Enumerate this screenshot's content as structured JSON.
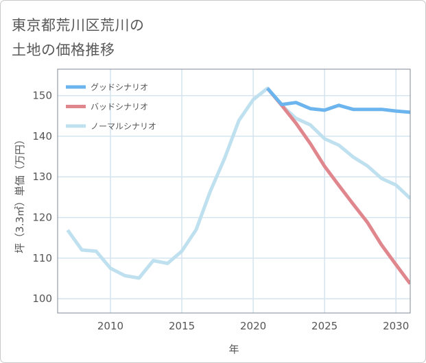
{
  "title_lines": [
    "東京都荒川区荒川の",
    "土地の価格推移"
  ],
  "colors": {
    "good": "#6cb4ee",
    "bad": "#e0868d",
    "normal": "#bfe0ef",
    "grid": "#d4e4ef",
    "frame": "#7d8a94"
  },
  "chart_data": {
    "type": "line",
    "xlabel": "年",
    "ylabel": "坪（3.3㎡）単価（万円）",
    "xlim": [
      2006.3,
      2031
    ],
    "ylim": [
      96.5,
      156.5
    ],
    "x_ticks": [
      2010,
      2015,
      2020,
      2025,
      2030
    ],
    "y_ticks": [
      100,
      110,
      120,
      130,
      140,
      150
    ],
    "grid": true,
    "legend_position": "top-left",
    "series": [
      {
        "name": "グッドシナリオ",
        "color_key": "good",
        "points": [
          [
            2021,
            151.8
          ],
          [
            2022,
            147.8
          ],
          [
            2023,
            148.3
          ],
          [
            2024,
            146.8
          ],
          [
            2025,
            146.4
          ],
          [
            2026,
            147.6
          ],
          [
            2027,
            146.6
          ],
          [
            2028,
            146.6
          ],
          [
            2029,
            146.6
          ],
          [
            2030,
            146.2
          ],
          [
            2031,
            145.9
          ]
        ]
      },
      {
        "name": "バッドシナリオ",
        "color_key": "bad",
        "points": [
          [
            2021,
            151.8
          ],
          [
            2022,
            147.6
          ],
          [
            2023,
            143.2
          ],
          [
            2024,
            138.2
          ],
          [
            2025,
            132.6
          ],
          [
            2026,
            127.9
          ],
          [
            2027,
            123.3
          ],
          [
            2028,
            118.8
          ],
          [
            2029,
            113.2
          ],
          [
            2030,
            108.4
          ],
          [
            2031,
            103.7
          ]
        ]
      },
      {
        "name": "ノーマルシナリオ",
        "color_key": "normal",
        "points": [
          [
            2007,
            116.9
          ],
          [
            2008,
            112.0
          ],
          [
            2009,
            111.7
          ],
          [
            2010,
            107.5
          ],
          [
            2011,
            105.7
          ],
          [
            2012,
            105.1
          ],
          [
            2013,
            109.4
          ],
          [
            2014,
            108.7
          ],
          [
            2015,
            111.7
          ],
          [
            2016,
            117.0
          ],
          [
            2017,
            126.5
          ],
          [
            2018,
            134.6
          ],
          [
            2019,
            143.9
          ],
          [
            2020,
            149.0
          ],
          [
            2021,
            151.8
          ],
          [
            2022,
            147.6
          ],
          [
            2023,
            144.4
          ],
          [
            2024,
            142.8
          ],
          [
            2025,
            139.4
          ],
          [
            2026,
            137.8
          ],
          [
            2027,
            134.9
          ],
          [
            2028,
            132.7
          ],
          [
            2029,
            129.6
          ],
          [
            2030,
            128.0
          ],
          [
            2031,
            124.7
          ]
        ]
      }
    ]
  }
}
